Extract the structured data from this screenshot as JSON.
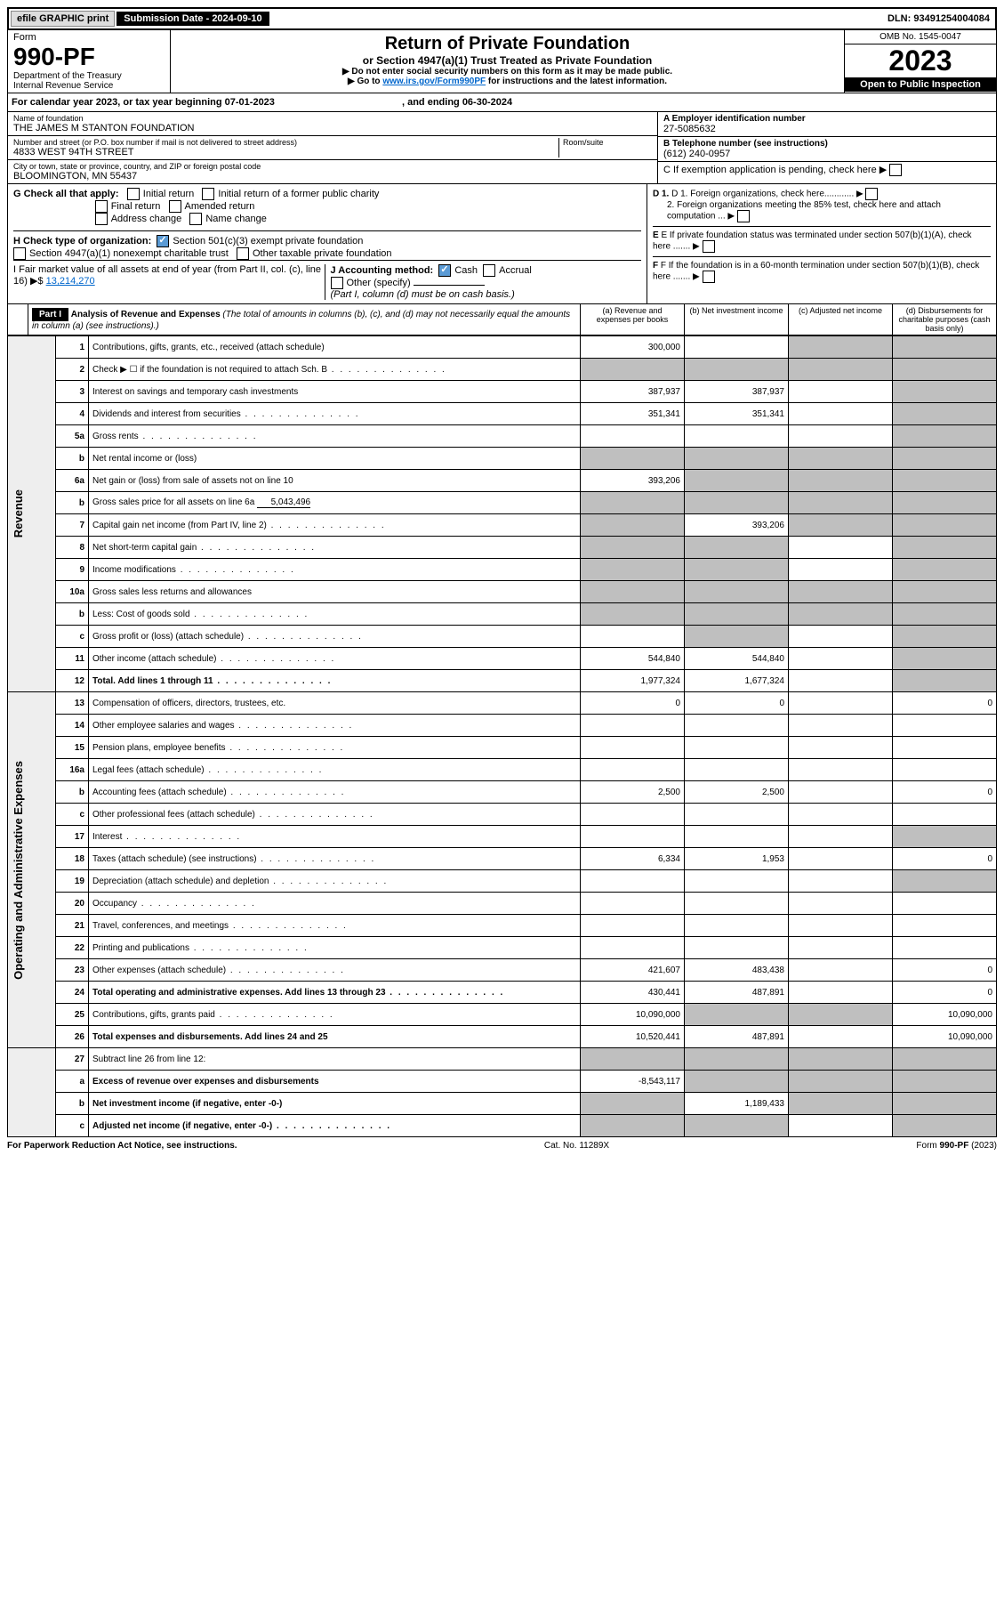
{
  "topbar": {
    "efile": "efile GRAPHIC print",
    "submission": "Submission Date - 2024-09-10",
    "dln": "DLN: 93491254004084"
  },
  "header": {
    "form_label": "Form",
    "form_number": "990-PF",
    "dept": "Department of the Treasury",
    "irs": "Internal Revenue Service",
    "title": "Return of Private Foundation",
    "subtitle": "or Section 4947(a)(1) Trust Treated as Private Foundation",
    "note1": "▶ Do not enter social security numbers on this form as it may be made public.",
    "note2_pre": "▶ Go to ",
    "note2_link": "www.irs.gov/Form990PF",
    "note2_post": " for instructions and the latest information.",
    "omb": "OMB No. 1545-0047",
    "year": "2023",
    "open": "Open to Public Inspection"
  },
  "cal": {
    "text": "For calendar year 2023, or tax year beginning 07-01-2023",
    "end": ", and ending 06-30-2024"
  },
  "info": {
    "name_label": "Name of foundation",
    "name": "THE JAMES M STANTON FOUNDATION",
    "addr_label": "Number and street (or P.O. box number if mail is not delivered to street address)",
    "addr": "4833 WEST 94TH STREET",
    "room_label": "Room/suite",
    "city_label": "City or town, state or province, country, and ZIP or foreign postal code",
    "city": "BLOOMINGTON, MN  55437",
    "ein_label": "A Employer identification number",
    "ein": "27-5085632",
    "phone_label": "B Telephone number (see instructions)",
    "phone": "(612) 240-0957",
    "c": "C If exemption application is pending, check here",
    "d1": "D 1. Foreign organizations, check here............",
    "d2": "2. Foreign organizations meeting the 85% test, check here and attach computation ...",
    "e": "E If private foundation status was terminated under section 507(b)(1)(A), check here .......",
    "f": "F If the foundation is in a 60-month termination under section 507(b)(1)(B), check here .......",
    "g_label": "G Check all that apply:",
    "g_initial": "Initial return",
    "g_initial_former": "Initial return of a former public charity",
    "g_final": "Final return",
    "g_amended": "Amended return",
    "g_address": "Address change",
    "g_name": "Name change",
    "h_label": "H Check type of organization:",
    "h_501": "Section 501(c)(3) exempt private foundation",
    "h_4947": "Section 4947(a)(1) nonexempt charitable trust",
    "h_other": "Other taxable private foundation",
    "i_label": "I Fair market value of all assets at end of year (from Part II, col. (c), line 16)",
    "i_value": "13,214,270",
    "j_label": "J Accounting method:",
    "j_cash": "Cash",
    "j_accrual": "Accrual",
    "j_other": "Other (specify)",
    "j_note": "(Part I, column (d) must be on cash basis.)"
  },
  "part1": {
    "label": "Part I",
    "title": "Analysis of Revenue and Expenses",
    "note": "(The total of amounts in columns (b), (c), and (d) may not necessarily equal the amounts in column (a) (see instructions).)",
    "col_a": "(a) Revenue and expenses per books",
    "col_b": "(b) Net investment income",
    "col_c": "(c) Adjusted net income",
    "col_d": "(d) Disbursements for charitable purposes (cash basis only)"
  },
  "sections": {
    "revenue": "Revenue",
    "expenses": "Operating and Administrative Expenses"
  },
  "rows": [
    {
      "n": "1",
      "d": "Contributions, gifts, grants, etc., received (attach schedule)",
      "a": "300,000",
      "b": "",
      "c": "grey",
      "dd": "grey"
    },
    {
      "n": "2",
      "d": "Check ▶ ☐ if the foundation is not required to attach Sch. B",
      "dots": true,
      "a": "grey",
      "b": "grey",
      "c": "grey",
      "dd": "grey"
    },
    {
      "n": "3",
      "d": "Interest on savings and temporary cash investments",
      "a": "387,937",
      "b": "387,937",
      "c": "",
      "dd": "grey"
    },
    {
      "n": "4",
      "d": "Dividends and interest from securities",
      "dots": true,
      "a": "351,341",
      "b": "351,341",
      "c": "",
      "dd": "grey"
    },
    {
      "n": "5a",
      "d": "Gross rents",
      "dots": true,
      "a": "",
      "b": "",
      "c": "",
      "dd": "grey"
    },
    {
      "n": "b",
      "d": "Net rental income or (loss)",
      "underline": true,
      "a": "grey",
      "b": "grey",
      "c": "grey",
      "dd": "grey"
    },
    {
      "n": "6a",
      "d": "Net gain or (loss) from sale of assets not on line 10",
      "a": "393,206",
      "b": "grey",
      "c": "grey",
      "dd": "grey"
    },
    {
      "n": "b",
      "d": "Gross sales price for all assets on line 6a",
      "val": "5,043,496",
      "a": "grey",
      "b": "grey",
      "c": "grey",
      "dd": "grey"
    },
    {
      "n": "7",
      "d": "Capital gain net income (from Part IV, line 2)",
      "dots": true,
      "a": "grey",
      "b": "393,206",
      "c": "grey",
      "dd": "grey"
    },
    {
      "n": "8",
      "d": "Net short-term capital gain",
      "dots": true,
      "a": "grey",
      "b": "grey",
      "c": "",
      "dd": "grey"
    },
    {
      "n": "9",
      "d": "Income modifications",
      "dots": true,
      "a": "grey",
      "b": "grey",
      "c": "",
      "dd": "grey"
    },
    {
      "n": "10a",
      "d": "Gross sales less returns and allowances",
      "underline": true,
      "a": "grey",
      "b": "grey",
      "c": "grey",
      "dd": "grey"
    },
    {
      "n": "b",
      "d": "Less: Cost of goods sold",
      "dots": true,
      "underline": true,
      "a": "grey",
      "b": "grey",
      "c": "grey",
      "dd": "grey"
    },
    {
      "n": "c",
      "d": "Gross profit or (loss) (attach schedule)",
      "dots": true,
      "a": "",
      "b": "grey",
      "c": "",
      "dd": "grey"
    },
    {
      "n": "11",
      "d": "Other income (attach schedule)",
      "dots": true,
      "a": "544,840",
      "b": "544,840",
      "c": "",
      "dd": "grey"
    },
    {
      "n": "12",
      "d": "Total. Add lines 1 through 11",
      "dots": true,
      "bold": true,
      "a": "1,977,324",
      "b": "1,677,324",
      "c": "",
      "dd": "grey"
    },
    {
      "n": "13",
      "d": "Compensation of officers, directors, trustees, etc.",
      "a": "0",
      "b": "0",
      "c": "",
      "dd": "0"
    },
    {
      "n": "14",
      "d": "Other employee salaries and wages",
      "dots": true,
      "a": "",
      "b": "",
      "c": "",
      "dd": ""
    },
    {
      "n": "15",
      "d": "Pension plans, employee benefits",
      "dots": true,
      "a": "",
      "b": "",
      "c": "",
      "dd": ""
    },
    {
      "n": "16a",
      "d": "Legal fees (attach schedule)",
      "dots": true,
      "a": "",
      "b": "",
      "c": "",
      "dd": ""
    },
    {
      "n": "b",
      "d": "Accounting fees (attach schedule)",
      "dots": true,
      "a": "2,500",
      "b": "2,500",
      "c": "",
      "dd": "0"
    },
    {
      "n": "c",
      "d": "Other professional fees (attach schedule)",
      "dots": true,
      "a": "",
      "b": "",
      "c": "",
      "dd": ""
    },
    {
      "n": "17",
      "d": "Interest",
      "dots": true,
      "a": "",
      "b": "",
      "c": "",
      "dd": "grey"
    },
    {
      "n": "18",
      "d": "Taxes (attach schedule) (see instructions)",
      "dots": true,
      "a": "6,334",
      "b": "1,953",
      "c": "",
      "dd": "0"
    },
    {
      "n": "19",
      "d": "Depreciation (attach schedule) and depletion",
      "dots": true,
      "a": "",
      "b": "",
      "c": "",
      "dd": "grey"
    },
    {
      "n": "20",
      "d": "Occupancy",
      "dots": true,
      "a": "",
      "b": "",
      "c": "",
      "dd": ""
    },
    {
      "n": "21",
      "d": "Travel, conferences, and meetings",
      "dots": true,
      "a": "",
      "b": "",
      "c": "",
      "dd": ""
    },
    {
      "n": "22",
      "d": "Printing and publications",
      "dots": true,
      "a": "",
      "b": "",
      "c": "",
      "dd": ""
    },
    {
      "n": "23",
      "d": "Other expenses (attach schedule)",
      "dots": true,
      "a": "421,607",
      "b": "483,438",
      "c": "",
      "dd": "0"
    },
    {
      "n": "24",
      "d": "Total operating and administrative expenses. Add lines 13 through 23",
      "dots": true,
      "bold": true,
      "a": "430,441",
      "b": "487,891",
      "c": "",
      "dd": "0"
    },
    {
      "n": "25",
      "d": "Contributions, gifts, grants paid",
      "dots": true,
      "a": "10,090,000",
      "b": "grey",
      "c": "grey",
      "dd": "10,090,000"
    },
    {
      "n": "26",
      "d": "Total expenses and disbursements. Add lines 24 and 25",
      "bold": true,
      "a": "10,520,441",
      "b": "487,891",
      "c": "",
      "dd": "10,090,000"
    },
    {
      "n": "27",
      "d": "Subtract line 26 from line 12:",
      "a": "grey",
      "b": "grey",
      "c": "grey",
      "dd": "grey"
    },
    {
      "n": "a",
      "d": "Excess of revenue over expenses and disbursements",
      "bold": true,
      "a": "-8,543,117",
      "b": "grey",
      "c": "grey",
      "dd": "grey"
    },
    {
      "n": "b",
      "d": "Net investment income (if negative, enter -0-)",
      "bold": true,
      "a": "grey",
      "b": "1,189,433",
      "c": "grey",
      "dd": "grey"
    },
    {
      "n": "c",
      "d": "Adjusted net income (if negative, enter -0-)",
      "dots": true,
      "bold": true,
      "a": "grey",
      "b": "grey",
      "c": "",
      "dd": "grey"
    }
  ],
  "footer": {
    "left": "For Paperwork Reduction Act Notice, see instructions.",
    "mid": "Cat. No. 11289X",
    "right": "Form 990-PF (2023)"
  }
}
